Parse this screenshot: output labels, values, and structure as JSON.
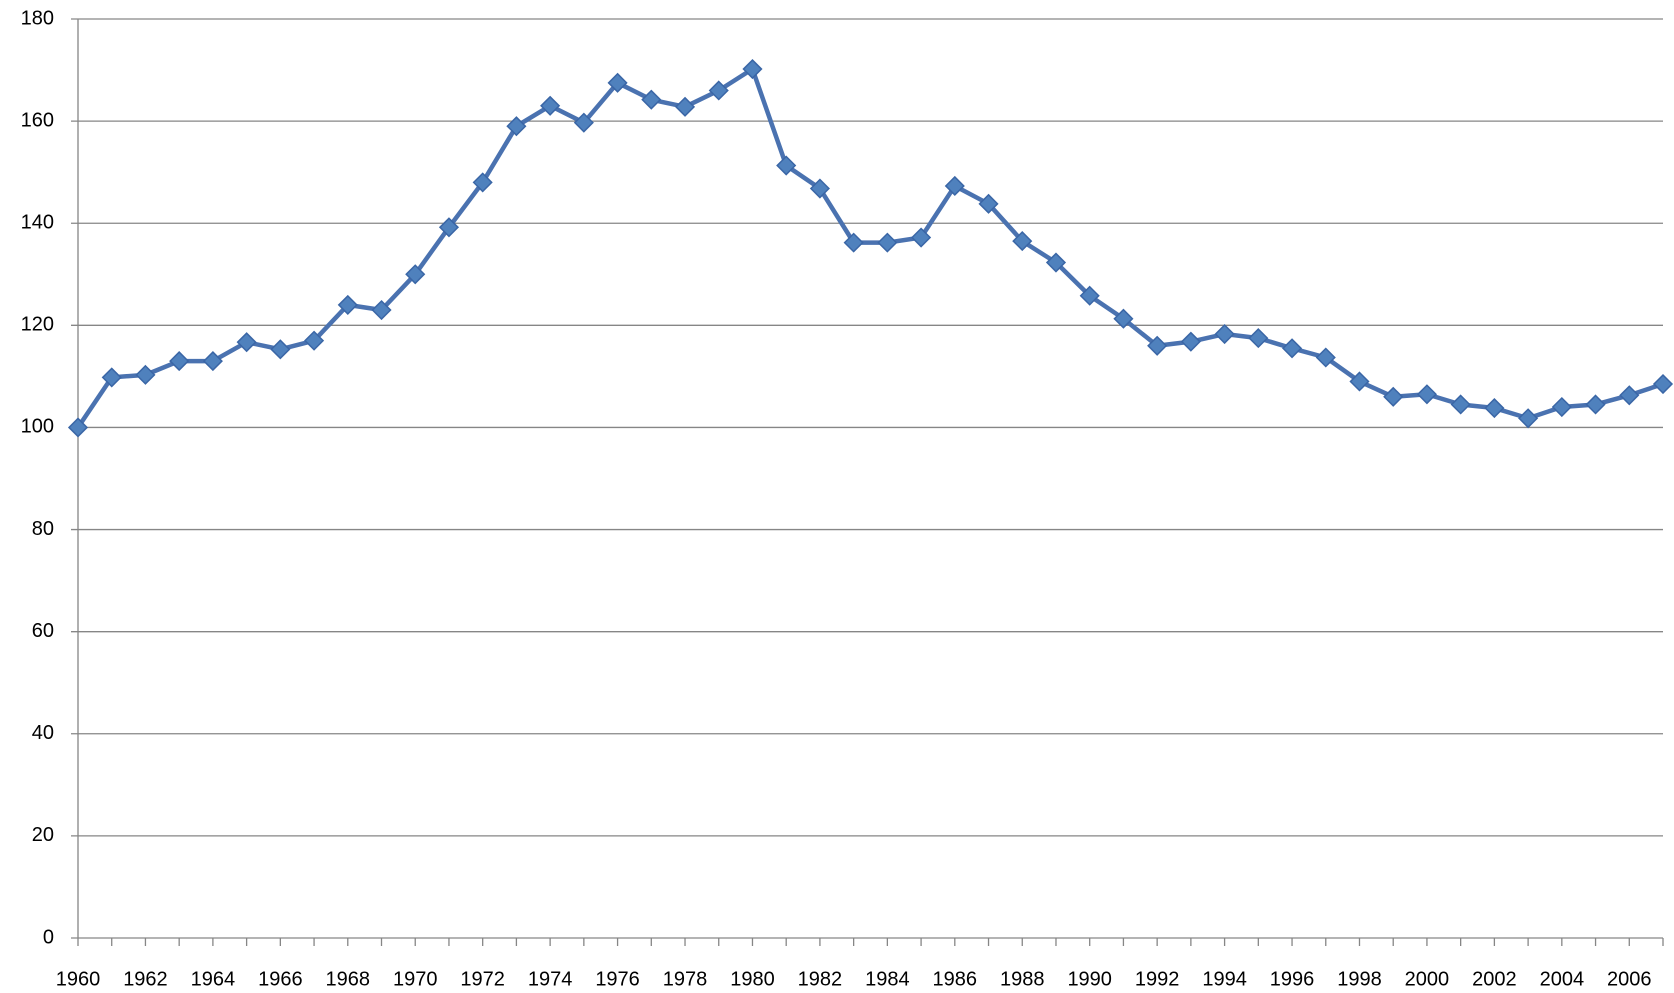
{
  "chart_data": {
    "type": "line",
    "categories": [
      "1960",
      null,
      "1962",
      null,
      "1964",
      null,
      "1966",
      null,
      "1968",
      null,
      "1970",
      null,
      "1972",
      null,
      "1974",
      null,
      "1976",
      null,
      "1978",
      null,
      "1980",
      null,
      "1982",
      null,
      "1984",
      null,
      "1986",
      null,
      "1988",
      null,
      "1990",
      null,
      "1992",
      null,
      "1994",
      null,
      "1996",
      null,
      "1998",
      null,
      "2000",
      null,
      "2002",
      null,
      "2004",
      null,
      "2006",
      null
    ],
    "values": [
      100,
      109.8,
      110.3,
      113,
      113,
      116.7,
      115.3,
      117,
      124,
      123,
      130,
      139.2,
      148,
      159,
      163,
      159.7,
      167.5,
      164.2,
      162.8,
      166,
      170.2,
      151.3,
      146.8,
      136.2,
      136.2,
      137.2,
      147.3,
      143.8,
      136.5,
      132.3,
      125.8,
      121.3,
      116,
      116.8,
      118.3,
      117.5,
      115.5,
      113.7,
      109,
      106,
      106.5,
      104.5,
      103.8,
      101.8,
      104,
      104.5,
      106.3,
      108.5
    ],
    "color": "#4f81bd",
    "ylim": [
      0,
      180
    ],
    "yticks": [
      0,
      20,
      40,
      60,
      80,
      100,
      120,
      140,
      160,
      180
    ],
    "grid": true
  }
}
